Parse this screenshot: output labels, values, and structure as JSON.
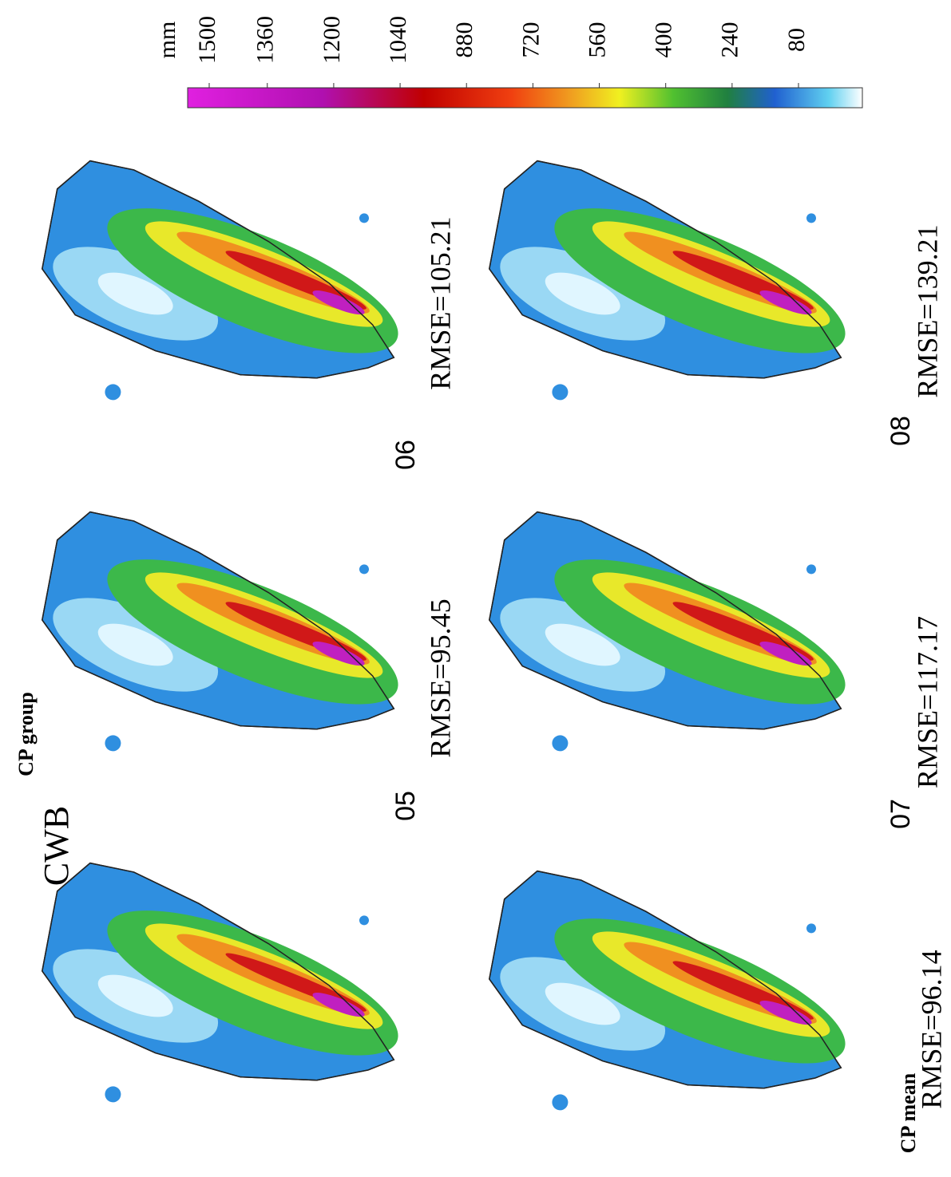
{
  "colorbar": {
    "unit": "mm",
    "ticks": [
      1500,
      1360,
      1200,
      1040,
      880,
      720,
      560,
      400,
      240,
      80
    ]
  },
  "panels": [
    {
      "title": "CWB"
    },
    {
      "title": "CP group",
      "member": "05",
      "score": "RMSE=95.45"
    },
    {
      "member": "06",
      "score": "RMSE=105.21"
    },
    {
      "title": "CP mean",
      "score": "RMSE=96.14"
    },
    {
      "member": "07",
      "score": "RMSE=117.17"
    },
    {
      "member": "08",
      "score": "RMSE=139.21"
    }
  ]
}
